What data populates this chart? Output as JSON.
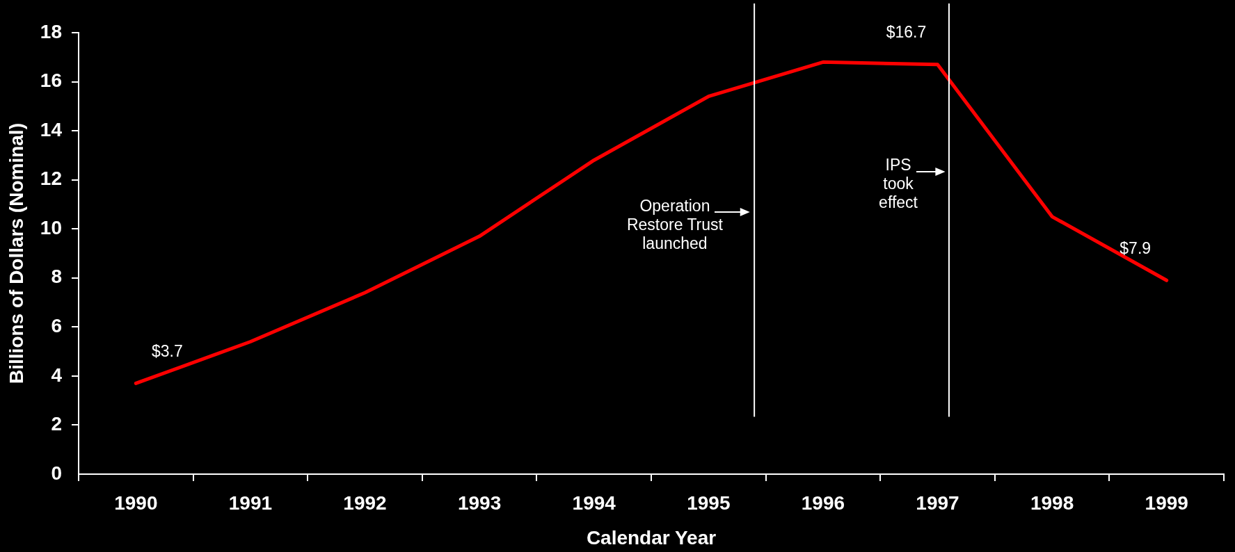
{
  "chart_data": {
    "type": "line",
    "x": [
      1990,
      1991,
      1992,
      1993,
      1994,
      1995,
      1996,
      1997,
      1998,
      1999
    ],
    "values": [
      3.7,
      5.4,
      7.4,
      9.7,
      12.8,
      15.4,
      16.8,
      16.7,
      10.5,
      7.9
    ],
    "color": "#ff0000",
    "value_labels": [
      "$3.7",
      null,
      null,
      null,
      null,
      null,
      null,
      "$16.7",
      null,
      "$7.9"
    ],
    "xlabel": "Calendar Year",
    "ylabel": "Billions of Dollars (Nominal)",
    "xlim": [
      1989.5,
      1999.5
    ],
    "xticks": [
      {
        "value": 1989.5,
        "label": null
      },
      1990,
      {
        "value": 1990.5,
        "label": null
      },
      1991,
      {
        "value": 1991.5,
        "label": null
      },
      1992,
      {
        "value": 1992.5,
        "label": null
      },
      1993,
      {
        "value": 1993.5,
        "label": null
      },
      1994,
      {
        "value": 1994.5,
        "label": null
      },
      1995,
      {
        "value": 1995.5,
        "label": null
      },
      1996,
      {
        "value": 1996.5,
        "label": null
      },
      1997,
      {
        "value": 1997.5,
        "label": null
      },
      1998,
      {
        "value": 1998.5,
        "label": null
      },
      1999,
      {
        "value": 1999.5,
        "label": null
      }
    ],
    "ylim": [
      0,
      18
    ],
    "yticks": [
      0,
      2,
      4,
      6,
      8,
      10,
      12,
      14,
      16,
      18
    ],
    "ref_lines": [
      {
        "axis": "x",
        "value": 1995.4,
        "label": "Operation\nRestore Trust\nlaunched",
        "color": "#ffffff"
      },
      {
        "axis": "x",
        "value": 1997.1,
        "label": "IPS\ntook\neffect",
        "color": "#ffffff"
      }
    ],
    "grid": false,
    "legend": false,
    "marker": "none",
    "line_style": "solid"
  }
}
